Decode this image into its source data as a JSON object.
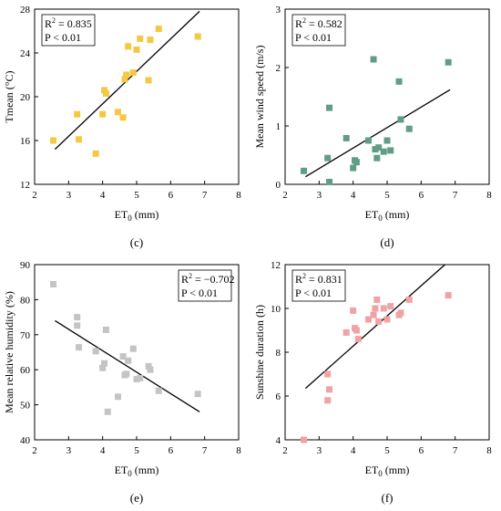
{
  "chart_data": [
    {
      "type": "scatter",
      "panel_label": "(c)",
      "xlabel": "ET",
      "xlabel_sub": "0",
      "xlabel_unit": " (mm)",
      "ylabel": "Tmean (°C)",
      "xlim": [
        2,
        8
      ],
      "ylim": [
        12,
        28
      ],
      "xticks": [
        2,
        3,
        4,
        5,
        6,
        7,
        8
      ],
      "yticks": [
        12,
        16,
        20,
        24,
        28
      ],
      "marker_color": "#f5c842",
      "r2_text": " = 0.835",
      "p_text": "P < 0.01",
      "fit": [
        [
          2.6,
          15.2
        ],
        [
          6.85,
          27.8
        ]
      ],
      "points": [
        [
          2.55,
          16.0
        ],
        [
          3.25,
          18.4
        ],
        [
          3.3,
          16.1
        ],
        [
          3.8,
          14.8
        ],
        [
          4.0,
          18.4
        ],
        [
          4.05,
          20.6
        ],
        [
          4.1,
          20.3
        ],
        [
          4.45,
          18.6
        ],
        [
          4.6,
          18.1
        ],
        [
          4.65,
          21.6
        ],
        [
          4.7,
          22.0
        ],
        [
          4.75,
          24.6
        ],
        [
          4.9,
          22.2
        ],
        [
          5.0,
          24.3
        ],
        [
          5.1,
          25.3
        ],
        [
          5.35,
          21.5
        ],
        [
          5.4,
          25.2
        ],
        [
          5.65,
          26.2
        ],
        [
          6.8,
          25.5
        ]
      ]
    },
    {
      "type": "scatter",
      "panel_label": "(d)",
      "xlabel": "ET",
      "xlabel_sub": "0",
      "xlabel_unit": " (mm)",
      "ylabel": "Mean wind speed (m/s)",
      "xlim": [
        2,
        8
      ],
      "ylim": [
        0,
        3
      ],
      "xticks": [
        2,
        3,
        4,
        5,
        6,
        7,
        8
      ],
      "yticks": [
        0,
        1,
        2,
        3
      ],
      "marker_color": "#5f9e84",
      "r2_text": " = 0.582",
      "p_text": "P < 0.01",
      "fit": [
        [
          2.6,
          0.13
        ],
        [
          6.85,
          1.62
        ]
      ],
      "points": [
        [
          2.55,
          0.23
        ],
        [
          3.25,
          0.45
        ],
        [
          3.3,
          1.31
        ],
        [
          3.3,
          0.04
        ],
        [
          3.8,
          0.79
        ],
        [
          4.0,
          0.28
        ],
        [
          4.05,
          0.41
        ],
        [
          4.1,
          0.38
        ],
        [
          4.45,
          0.75
        ],
        [
          4.6,
          2.14
        ],
        [
          4.65,
          0.6
        ],
        [
          4.7,
          0.45
        ],
        [
          4.75,
          0.63
        ],
        [
          4.9,
          0.56
        ],
        [
          5.0,
          0.75
        ],
        [
          5.1,
          0.58
        ],
        [
          5.35,
          1.76
        ],
        [
          5.4,
          1.11
        ],
        [
          5.65,
          0.95
        ],
        [
          6.8,
          2.09
        ]
      ]
    },
    {
      "type": "scatter",
      "panel_label": "(e)",
      "xlabel": "ET",
      "xlabel_sub": "0",
      "xlabel_unit": " (mm)",
      "ylabel": "Mean relative humidity (%)",
      "xlim": [
        2,
        8
      ],
      "ylim": [
        40,
        90
      ],
      "xticks": [
        2,
        3,
        4,
        5,
        6,
        7,
        8
      ],
      "yticks": [
        40,
        50,
        60,
        70,
        80,
        90
      ],
      "marker_color": "#c4c4c4",
      "r2_text": " = −0.702",
      "p_text": "P < 0.01",
      "fit": [
        [
          2.6,
          74.0
        ],
        [
          6.85,
          48.0
        ]
      ],
      "points": [
        [
          2.55,
          84.4
        ],
        [
          3.25,
          75.0
        ],
        [
          3.25,
          72.6
        ],
        [
          3.3,
          66.4
        ],
        [
          3.8,
          65.3
        ],
        [
          4.0,
          60.5
        ],
        [
          4.05,
          61.8
        ],
        [
          4.1,
          71.4
        ],
        [
          4.15,
          48.0
        ],
        [
          4.45,
          52.3
        ],
        [
          4.6,
          63.8
        ],
        [
          4.65,
          58.5
        ],
        [
          4.7,
          58.8
        ],
        [
          4.75,
          62.6
        ],
        [
          4.9,
          66.0
        ],
        [
          5.0,
          57.3
        ],
        [
          5.1,
          57.6
        ],
        [
          5.35,
          61.0
        ],
        [
          5.4,
          60.0
        ],
        [
          5.65,
          54.0
        ],
        [
          6.8,
          53.1
        ]
      ]
    },
    {
      "type": "scatter",
      "panel_label": "(f)",
      "xlabel": "ET",
      "xlabel_sub": "0",
      "xlabel_unit": " (mm)",
      "ylabel": "Sunshine duration (h)",
      "xlim": [
        2,
        8
      ],
      "ylim": [
        4,
        12
      ],
      "xticks": [
        2,
        3,
        4,
        5,
        6,
        7,
        8
      ],
      "yticks": [
        4,
        6,
        8,
        10,
        12
      ],
      "marker_color": "#f0a3a3",
      "r2_text": " = 0.831",
      "p_text": "P < 0.01",
      "fit": [
        [
          2.6,
          6.35
        ],
        [
          6.7,
          12.0
        ]
      ],
      "points": [
        [
          2.55,
          4.0
        ],
        [
          3.25,
          7.0
        ],
        [
          3.25,
          5.8
        ],
        [
          3.3,
          6.3
        ],
        [
          3.8,
          8.9
        ],
        [
          4.0,
          9.9
        ],
        [
          4.05,
          9.1
        ],
        [
          4.1,
          9.0
        ],
        [
          4.15,
          8.6
        ],
        [
          4.45,
          9.5
        ],
        [
          4.6,
          9.7
        ],
        [
          4.65,
          10.0
        ],
        [
          4.7,
          10.4
        ],
        [
          4.75,
          9.4
        ],
        [
          4.9,
          10.0
        ],
        [
          5.0,
          9.5
        ],
        [
          5.1,
          10.1
        ],
        [
          5.35,
          9.7
        ],
        [
          5.4,
          9.8
        ],
        [
          5.65,
          10.4
        ],
        [
          6.8,
          10.6
        ]
      ]
    }
  ]
}
